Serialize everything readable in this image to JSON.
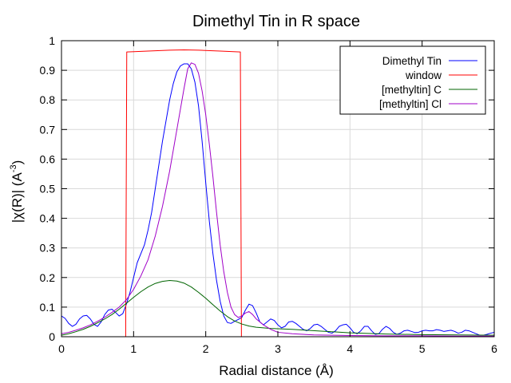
{
  "chart_data": {
    "type": "line",
    "title": "Dimethyl Tin in R space",
    "xlabel": "Radial distance    (Å)",
    "ylabel_main": "|χ(R)|   (A",
    "ylabel_sup": "-3",
    "ylabel_close": ")",
    "xlim": [
      0,
      6
    ],
    "ylim": [
      0,
      1
    ],
    "xticks": [
      0,
      1,
      2,
      3,
      4,
      5,
      6
    ],
    "yticks": [
      0,
      0.1,
      0.2,
      0.3,
      0.4,
      0.5,
      0.6,
      0.7,
      0.8,
      0.9,
      1
    ],
    "xtick_labels": [
      "0",
      "1",
      "2",
      "3",
      "4",
      "5",
      "6"
    ],
    "ytick_labels": [
      "0",
      "0.1",
      "0.2",
      "0.3",
      "0.4",
      "0.5",
      "0.6",
      "0.7",
      "0.8",
      "0.9",
      "1"
    ],
    "grid": true,
    "legend_position": "top-right",
    "series": [
      {
        "name": "Dimethyl Tin",
        "color": "#0000ff",
        "points": [
          [
            0,
            0.07
          ],
          [
            0.05,
            0.062
          ],
          [
            0.1,
            0.045
          ],
          [
            0.15,
            0.035
          ],
          [
            0.2,
            0.042
          ],
          [
            0.25,
            0.06
          ],
          [
            0.3,
            0.07
          ],
          [
            0.35,
            0.072
          ],
          [
            0.4,
            0.06
          ],
          [
            0.45,
            0.042
          ],
          [
            0.5,
            0.035
          ],
          [
            0.55,
            0.05
          ],
          [
            0.6,
            0.075
          ],
          [
            0.65,
            0.09
          ],
          [
            0.7,
            0.093
          ],
          [
            0.75,
            0.082
          ],
          [
            0.8,
            0.07
          ],
          [
            0.85,
            0.078
          ],
          [
            0.9,
            0.11
          ],
          [
            0.95,
            0.15
          ],
          [
            1.0,
            0.2
          ],
          [
            1.05,
            0.25
          ],
          [
            1.1,
            0.28
          ],
          [
            1.15,
            0.31
          ],
          [
            1.2,
            0.36
          ],
          [
            1.25,
            0.42
          ],
          [
            1.3,
            0.5
          ],
          [
            1.35,
            0.58
          ],
          [
            1.4,
            0.66
          ],
          [
            1.45,
            0.73
          ],
          [
            1.5,
            0.8
          ],
          [
            1.55,
            0.855
          ],
          [
            1.6,
            0.895
          ],
          [
            1.65,
            0.915
          ],
          [
            1.7,
            0.922
          ],
          [
            1.75,
            0.922
          ],
          [
            1.8,
            0.905
          ],
          [
            1.85,
            0.86
          ],
          [
            1.9,
            0.78
          ],
          [
            1.95,
            0.66
          ],
          [
            2.0,
            0.52
          ],
          [
            2.05,
            0.39
          ],
          [
            2.1,
            0.28
          ],
          [
            2.15,
            0.19
          ],
          [
            2.2,
            0.12
          ],
          [
            2.25,
            0.07
          ],
          [
            2.3,
            0.048
          ],
          [
            2.35,
            0.045
          ],
          [
            2.4,
            0.052
          ],
          [
            2.45,
            0.058
          ],
          [
            2.5,
            0.065
          ],
          [
            2.55,
            0.09
          ],
          [
            2.6,
            0.11
          ],
          [
            2.65,
            0.105
          ],
          [
            2.7,
            0.08
          ],
          [
            2.75,
            0.05
          ],
          [
            2.8,
            0.04
          ],
          [
            2.85,
            0.05
          ],
          [
            2.9,
            0.06
          ],
          [
            2.95,
            0.055
          ],
          [
            3.0,
            0.04
          ],
          [
            3.05,
            0.03
          ],
          [
            3.1,
            0.035
          ],
          [
            3.15,
            0.05
          ],
          [
            3.2,
            0.052
          ],
          [
            3.25,
            0.045
          ],
          [
            3.3,
            0.035
          ],
          [
            3.35,
            0.025
          ],
          [
            3.4,
            0.02
          ],
          [
            3.45,
            0.028
          ],
          [
            3.5,
            0.04
          ],
          [
            3.55,
            0.042
          ],
          [
            3.6,
            0.035
          ],
          [
            3.65,
            0.025
          ],
          [
            3.7,
            0.015
          ],
          [
            3.75,
            0.012
          ],
          [
            3.8,
            0.02
          ],
          [
            3.85,
            0.035
          ],
          [
            3.9,
            0.04
          ],
          [
            3.95,
            0.042
          ],
          [
            4.0,
            0.03
          ],
          [
            4.05,
            0.015
          ],
          [
            4.1,
            0.01
          ],
          [
            4.15,
            0.02
          ],
          [
            4.2,
            0.035
          ],
          [
            4.25,
            0.035
          ],
          [
            4.3,
            0.02
          ],
          [
            4.35,
            0.008
          ],
          [
            4.4,
            0.01
          ],
          [
            4.45,
            0.025
          ],
          [
            4.5,
            0.035
          ],
          [
            4.55,
            0.028
          ],
          [
            4.6,
            0.015
          ],
          [
            4.65,
            0.008
          ],
          [
            4.7,
            0.012
          ],
          [
            4.75,
            0.02
          ],
          [
            4.8,
            0.022
          ],
          [
            4.85,
            0.018
          ],
          [
            4.9,
            0.014
          ],
          [
            4.95,
            0.015
          ],
          [
            5.0,
            0.02
          ],
          [
            5.05,
            0.022
          ],
          [
            5.1,
            0.02
          ],
          [
            5.15,
            0.02
          ],
          [
            5.2,
            0.024
          ],
          [
            5.25,
            0.022
          ],
          [
            5.3,
            0.018
          ],
          [
            5.35,
            0.02
          ],
          [
            5.4,
            0.022
          ],
          [
            5.45,
            0.018
          ],
          [
            5.5,
            0.012
          ],
          [
            5.55,
            0.015
          ],
          [
            5.6,
            0.022
          ],
          [
            5.65,
            0.02
          ],
          [
            5.7,
            0.015
          ],
          [
            5.75,
            0.01
          ],
          [
            5.8,
            0.005
          ],
          [
            5.85,
            0.005
          ],
          [
            5.9,
            0.008
          ],
          [
            5.95,
            0.012
          ],
          [
            6.0,
            0.015
          ]
        ]
      },
      {
        "name": "window",
        "color": "#ff0000",
        "points": [
          [
            0,
            0
          ],
          [
            0.89,
            0
          ],
          [
            0.905,
            0.962
          ],
          [
            1.2,
            0.965
          ],
          [
            1.5,
            0.968
          ],
          [
            1.7,
            0.969
          ],
          [
            1.9,
            0.968
          ],
          [
            2.2,
            0.965
          ],
          [
            2.48,
            0.962
          ],
          [
            2.495,
            0
          ],
          [
            6,
            0
          ]
        ]
      },
      {
        "name": "[methyltin] C",
        "color": "#006400",
        "points": [
          [
            0,
            0.005
          ],
          [
            0.1,
            0.01
          ],
          [
            0.2,
            0.017
          ],
          [
            0.3,
            0.025
          ],
          [
            0.4,
            0.035
          ],
          [
            0.5,
            0.047
          ],
          [
            0.6,
            0.06
          ],
          [
            0.7,
            0.075
          ],
          [
            0.8,
            0.093
          ],
          [
            0.9,
            0.113
          ],
          [
            1.0,
            0.133
          ],
          [
            1.1,
            0.152
          ],
          [
            1.2,
            0.168
          ],
          [
            1.3,
            0.18
          ],
          [
            1.4,
            0.187
          ],
          [
            1.5,
            0.19
          ],
          [
            1.6,
            0.188
          ],
          [
            1.7,
            0.181
          ],
          [
            1.8,
            0.168
          ],
          [
            1.9,
            0.15
          ],
          [
            2.0,
            0.13
          ],
          [
            2.1,
            0.108
          ],
          [
            2.2,
            0.087
          ],
          [
            2.3,
            0.068
          ],
          [
            2.4,
            0.053
          ],
          [
            2.5,
            0.043
          ],
          [
            2.6,
            0.036
          ],
          [
            2.7,
            0.032
          ],
          [
            2.8,
            0.03
          ],
          [
            2.9,
            0.028
          ],
          [
            3.0,
            0.027
          ],
          [
            3.2,
            0.025
          ],
          [
            3.4,
            0.022
          ],
          [
            3.6,
            0.019
          ],
          [
            3.8,
            0.016
          ],
          [
            4.0,
            0.013
          ],
          [
            4.5,
            0.009
          ],
          [
            5.0,
            0.007
          ],
          [
            5.5,
            0.006
          ],
          [
            6.0,
            0.005
          ]
        ]
      },
      {
        "name": "[methyltin] Cl",
        "color": "#a000c8",
        "points": [
          [
            0,
            0.01
          ],
          [
            0.1,
            0.015
          ],
          [
            0.2,
            0.022
          ],
          [
            0.3,
            0.03
          ],
          [
            0.4,
            0.04
          ],
          [
            0.5,
            0.052
          ],
          [
            0.6,
            0.066
          ],
          [
            0.7,
            0.082
          ],
          [
            0.8,
            0.1
          ],
          [
            0.9,
            0.125
          ],
          [
            1.0,
            0.16
          ],
          [
            1.1,
            0.205
          ],
          [
            1.2,
            0.26
          ],
          [
            1.3,
            0.34
          ],
          [
            1.4,
            0.44
          ],
          [
            1.5,
            0.56
          ],
          [
            1.6,
            0.7
          ],
          [
            1.65,
            0.77
          ],
          [
            1.7,
            0.84
          ],
          [
            1.75,
            0.905
          ],
          [
            1.8,
            0.925
          ],
          [
            1.85,
            0.92
          ],
          [
            1.9,
            0.89
          ],
          [
            1.95,
            0.83
          ],
          [
            2.0,
            0.75
          ],
          [
            2.05,
            0.65
          ],
          [
            2.1,
            0.54
          ],
          [
            2.15,
            0.42
          ],
          [
            2.2,
            0.31
          ],
          [
            2.25,
            0.22
          ],
          [
            2.3,
            0.15
          ],
          [
            2.35,
            0.1
          ],
          [
            2.4,
            0.075
          ],
          [
            2.45,
            0.065
          ],
          [
            2.5,
            0.07
          ],
          [
            2.55,
            0.08
          ],
          [
            2.6,
            0.085
          ],
          [
            2.65,
            0.075
          ],
          [
            2.7,
            0.06
          ],
          [
            2.8,
            0.04
          ],
          [
            2.9,
            0.025
          ],
          [
            3.0,
            0.015
          ],
          [
            3.2,
            0.01
          ],
          [
            3.5,
            0.006
          ],
          [
            4.0,
            0.004
          ],
          [
            4.5,
            0.003
          ],
          [
            5.0,
            0.003
          ],
          [
            5.5,
            0.002
          ],
          [
            6.0,
            0.002
          ]
        ]
      }
    ]
  }
}
